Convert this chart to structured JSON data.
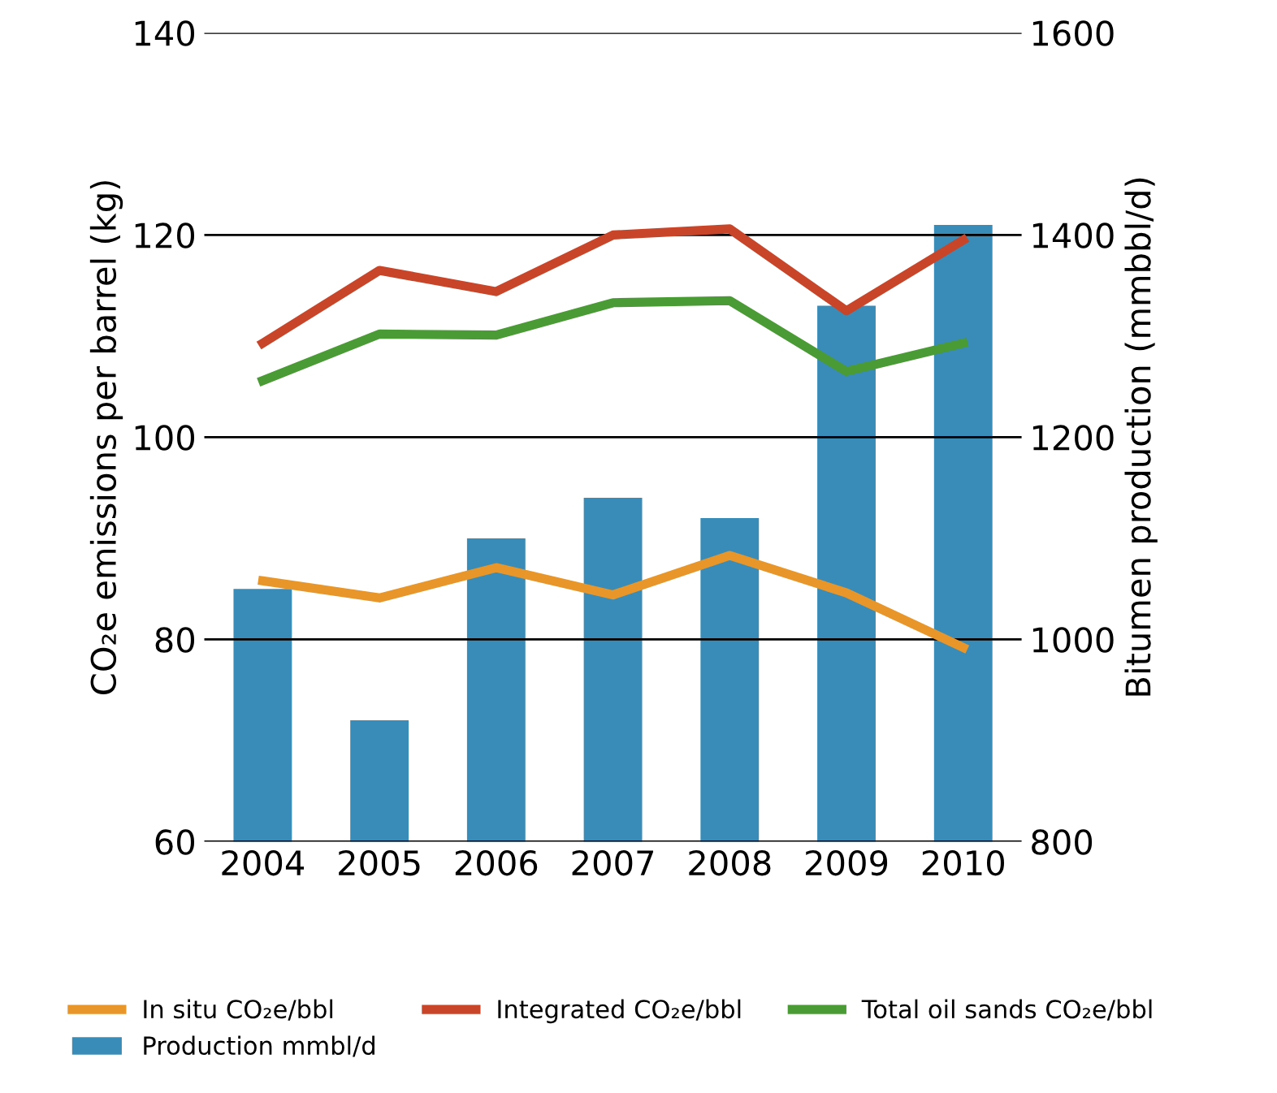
{
  "chart_data": {
    "type": "bar",
    "categories": [
      "2004",
      "2005",
      "2006",
      "2007",
      "2008",
      "2009",
      "2010"
    ],
    "ylabel": "CO₂e emissions per barrel (kg)",
    "y2label": "Bitumen production (mmbbl/d)",
    "ylim": [
      60,
      140
    ],
    "yticks": [
      60,
      80,
      100,
      120,
      140
    ],
    "y2lim": [
      800,
      1600
    ],
    "y2ticks": [
      800,
      1000,
      1200,
      1400,
      1600
    ],
    "grid": "y",
    "legend": "bottom",
    "series": [
      {
        "name": "In situ CO₂e/bbl",
        "type": "line",
        "color": "#e8962a",
        "values": [
          85.8,
          84.1,
          87.1,
          84.4,
          88.3,
          84.6,
          79.2
        ]
      },
      {
        "name": "Integrated CO₂e/bbl",
        "type": "line",
        "color": "#c8452a",
        "values": [
          109.3,
          116.5,
          114.4,
          120.0,
          120.6,
          112.5,
          119.5
        ]
      },
      {
        "name": "Total oil sands CO₂e/bbl",
        "type": "line",
        "color": "#4a9a35",
        "values": [
          105.6,
          110.2,
          110.1,
          113.3,
          113.5,
          106.5,
          109.3
        ]
      },
      {
        "name": "Production mmbl/d",
        "axis": "y2",
        "color": "#3a8cb8",
        "values": [
          1050,
          920,
          1100,
          1140,
          1120,
          1330,
          1410
        ]
      }
    ]
  }
}
